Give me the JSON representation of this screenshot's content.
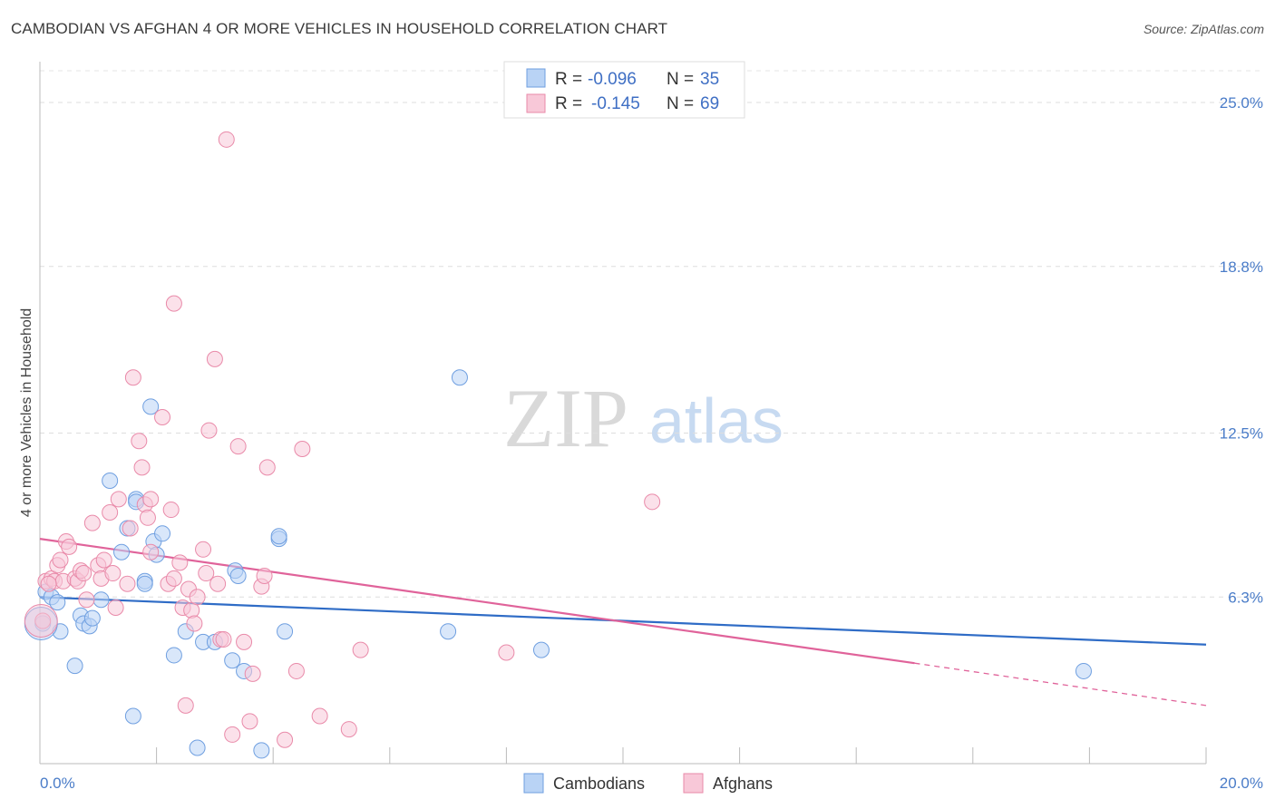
{
  "header": {
    "title": "CAMBODIAN VS AFGHAN 4 OR MORE VEHICLES IN HOUSEHOLD CORRELATION CHART",
    "source": "Source: ZipAtlas.com"
  },
  "watermark": {
    "zip": "ZIP",
    "atlas": "atlas"
  },
  "legend": {
    "r_label": "R =",
    "n_label": "N =",
    "rows": [
      {
        "name": "Cambodians",
        "r": "-0.096",
        "n": "35",
        "fill": "#b9d3f5",
        "stroke": "#6f9fe0"
      },
      {
        "name": "Afghans",
        "r": "-0.145",
        "n": "69",
        "fill": "#f8c8d8",
        "stroke": "#e98aa9"
      }
    ]
  },
  "chart_data": {
    "type": "scatter",
    "title": "CAMBODIAN VS AFGHAN 4 OR MORE VEHICLES IN HOUSEHOLD CORRELATION CHART",
    "xlabel": "",
    "ylabel": "4 or more Vehicles in Household",
    "xlim": [
      0,
      20
    ],
    "ylim": [
      0,
      26.2
    ],
    "x_tick_labels": [
      "0.0%",
      "20.0%"
    ],
    "y_ticks": [
      6.3,
      12.5,
      18.8,
      25.0
    ],
    "y_tick_labels": [
      "6.3%",
      "12.5%",
      "18.8%",
      "25.0%"
    ],
    "grid": true,
    "series": [
      {
        "name": "Cambodians",
        "color": "#6f9fe0",
        "fill": "#b9d3f5",
        "line_color": "#2f6cc6",
        "trend": {
          "x0": 0,
          "y0": 6.3,
          "x1": 20,
          "y1": 4.5
        },
        "points": [
          [
            0.1,
            6.5
          ],
          [
            0.2,
            6.3
          ],
          [
            0.3,
            6.1
          ],
          [
            0.35,
            5.0
          ],
          [
            0.6,
            3.7
          ],
          [
            0.7,
            5.6
          ],
          [
            0.75,
            5.3
          ],
          [
            0.85,
            5.2
          ],
          [
            0.9,
            5.5
          ],
          [
            1.05,
            6.2
          ],
          [
            1.2,
            10.7
          ],
          [
            1.4,
            8.0
          ],
          [
            1.5,
            8.9
          ],
          [
            1.6,
            1.8
          ],
          [
            1.9,
            13.5
          ],
          [
            1.8,
            6.9
          ],
          [
            1.8,
            6.8
          ],
          [
            1.65,
            10.0
          ],
          [
            1.65,
            9.9
          ],
          [
            1.95,
            8.4
          ],
          [
            2.0,
            7.9
          ],
          [
            2.3,
            4.1
          ],
          [
            2.1,
            8.7
          ],
          [
            2.5,
            5.0
          ],
          [
            2.7,
            0.6
          ],
          [
            2.8,
            4.6
          ],
          [
            3.0,
            4.6
          ],
          [
            3.3,
            3.9
          ],
          [
            3.5,
            3.5
          ],
          [
            3.35,
            7.3
          ],
          [
            3.4,
            7.1
          ],
          [
            3.8,
            0.5
          ],
          [
            4.1,
            8.5
          ],
          [
            4.1,
            8.6
          ],
          [
            4.2,
            5.0
          ],
          [
            7.2,
            14.6
          ],
          [
            7.0,
            5.0
          ],
          [
            8.6,
            4.3
          ],
          [
            17.9,
            3.5
          ],
          [
            0.05,
            5.3
          ]
        ],
        "large_points": [
          [
            0.02,
            5.3
          ]
        ]
      },
      {
        "name": "Afghans",
        "color": "#e98aa9",
        "fill": "#f8c8d8",
        "line_color": "#e0639a",
        "trend": {
          "x0": 0,
          "y0": 8.5,
          "x1": 15,
          "y1": 3.8
        },
        "trend_dashed": {
          "x0": 15,
          "y0": 3.8,
          "x1": 20,
          "y1": 2.2
        },
        "points": [
          [
            0.1,
            6.9
          ],
          [
            0.2,
            7.0
          ],
          [
            0.25,
            6.9
          ],
          [
            0.3,
            7.5
          ],
          [
            0.35,
            7.7
          ],
          [
            0.4,
            6.9
          ],
          [
            0.45,
            8.4
          ],
          [
            0.5,
            8.2
          ],
          [
            0.6,
            7.0
          ],
          [
            0.65,
            6.9
          ],
          [
            0.7,
            7.3
          ],
          [
            0.75,
            7.2
          ],
          [
            0.8,
            6.2
          ],
          [
            0.9,
            9.1
          ],
          [
            1.0,
            7.5
          ],
          [
            1.05,
            7.0
          ],
          [
            1.1,
            7.7
          ],
          [
            1.2,
            9.5
          ],
          [
            1.25,
            7.2
          ],
          [
            1.3,
            5.9
          ],
          [
            1.35,
            10.0
          ],
          [
            1.5,
            6.8
          ],
          [
            1.55,
            8.9
          ],
          [
            1.6,
            14.6
          ],
          [
            1.7,
            12.2
          ],
          [
            1.75,
            11.2
          ],
          [
            1.8,
            9.8
          ],
          [
            1.85,
            9.3
          ],
          [
            1.9,
            10.0
          ],
          [
            1.9,
            8.0
          ],
          [
            2.1,
            13.1
          ],
          [
            2.2,
            6.8
          ],
          [
            2.25,
            9.6
          ],
          [
            2.3,
            7.0
          ],
          [
            2.3,
            17.4
          ],
          [
            2.4,
            7.6
          ],
          [
            2.45,
            5.9
          ],
          [
            2.5,
            2.2
          ],
          [
            2.55,
            6.6
          ],
          [
            2.6,
            5.8
          ],
          [
            2.65,
            5.3
          ],
          [
            2.7,
            6.3
          ],
          [
            2.8,
            8.1
          ],
          [
            2.85,
            7.2
          ],
          [
            2.9,
            12.6
          ],
          [
            3.0,
            15.3
          ],
          [
            3.05,
            6.8
          ],
          [
            3.1,
            4.7
          ],
          [
            3.15,
            4.7
          ],
          [
            3.2,
            23.6
          ],
          [
            3.3,
            1.1
          ],
          [
            3.4,
            12.0
          ],
          [
            3.5,
            4.6
          ],
          [
            3.6,
            1.6
          ],
          [
            3.65,
            3.4
          ],
          [
            3.8,
            6.7
          ],
          [
            3.85,
            7.1
          ],
          [
            3.9,
            11.2
          ],
          [
            4.2,
            0.9
          ],
          [
            4.5,
            11.9
          ],
          [
            4.4,
            3.5
          ],
          [
            4.8,
            1.8
          ],
          [
            5.3,
            1.3
          ],
          [
            5.5,
            4.3
          ],
          [
            8.0,
            4.2
          ],
          [
            10.5,
            9.9
          ],
          [
            0.15,
            6.8
          ],
          [
            0.05,
            5.4
          ]
        ],
        "large_points": [
          [
            0.02,
            5.4
          ]
        ]
      }
    ]
  }
}
